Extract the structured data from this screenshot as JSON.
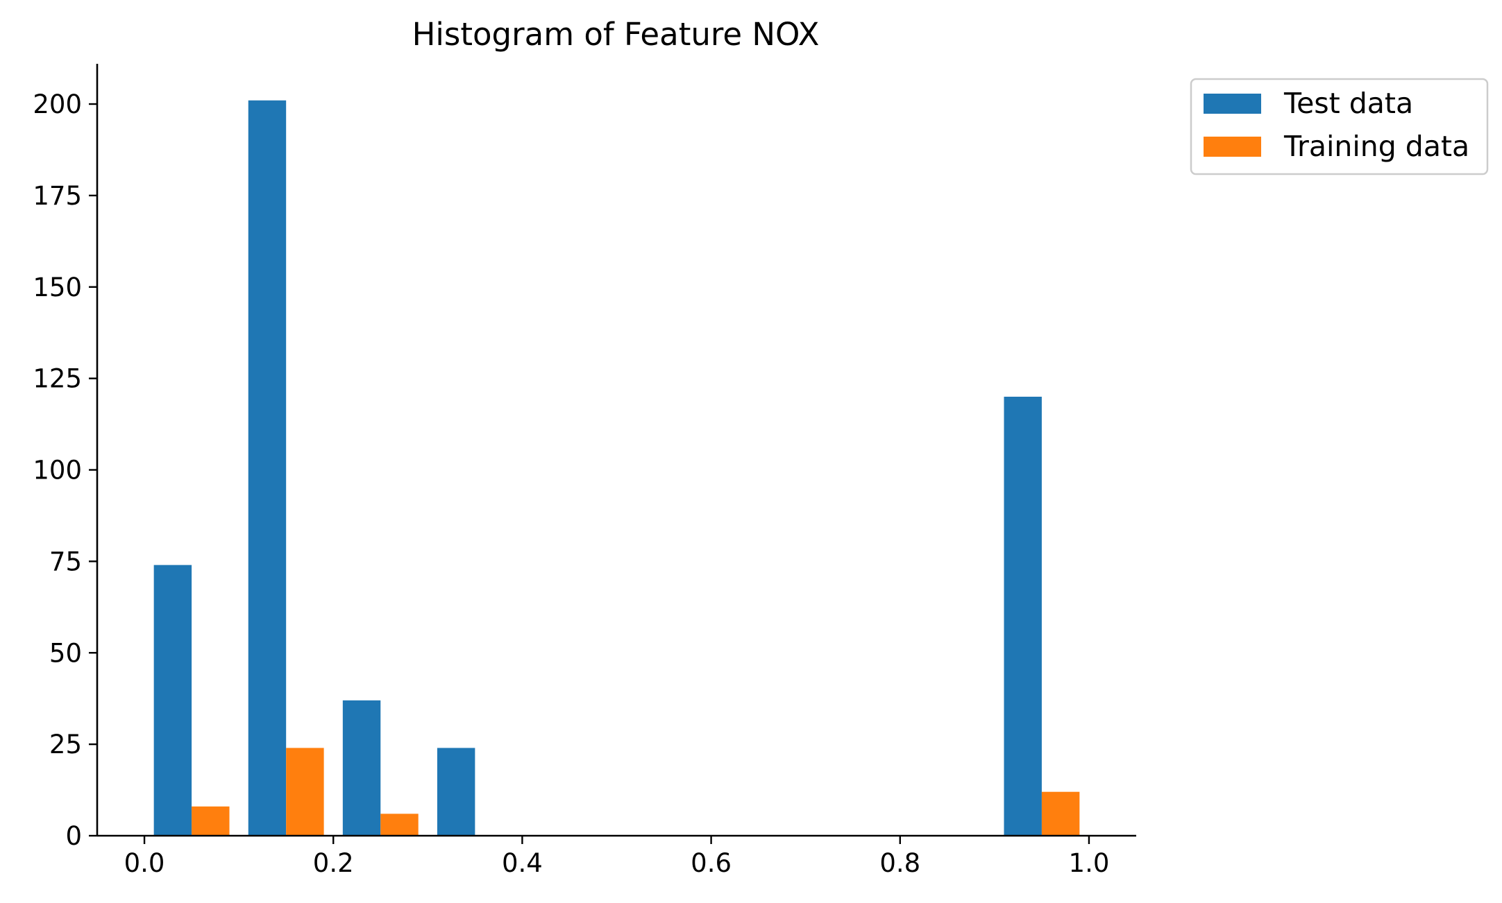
{
  "chart_data": {
    "type": "bar",
    "title": "Histogram of Feature NOX",
    "xlabel": "",
    "ylabel": "",
    "bin_edges": [
      0.0,
      0.1,
      0.2,
      0.3,
      0.4,
      0.5,
      0.6,
      0.7,
      0.8,
      0.9,
      1.0
    ],
    "series": [
      {
        "name": "Test data",
        "color": "#1f77b4",
        "values": [
          74,
          201,
          37,
          24,
          0,
          0,
          0,
          0,
          0,
          120
        ]
      },
      {
        "name": "Training data",
        "color": "#ff7f0e",
        "values": [
          8,
          24,
          6,
          0,
          0,
          0,
          0,
          0,
          0,
          12
        ]
      }
    ],
    "xlim": [
      -0.05,
      1.05
    ],
    "ylim": [
      0,
      211
    ],
    "xticks": [
      0.0,
      0.2,
      0.4,
      0.6,
      0.8,
      1.0
    ],
    "xtick_labels": [
      "0.0",
      "0.2",
      "0.4",
      "0.6",
      "0.8",
      "1.0"
    ],
    "yticks": [
      0,
      25,
      50,
      75,
      100,
      125,
      150,
      175,
      200
    ],
    "ytick_labels": [
      "0",
      "25",
      "50",
      "75",
      "100",
      "125",
      "150",
      "175",
      "200"
    ],
    "grid": false,
    "legend_position": "upper-right-outside"
  }
}
